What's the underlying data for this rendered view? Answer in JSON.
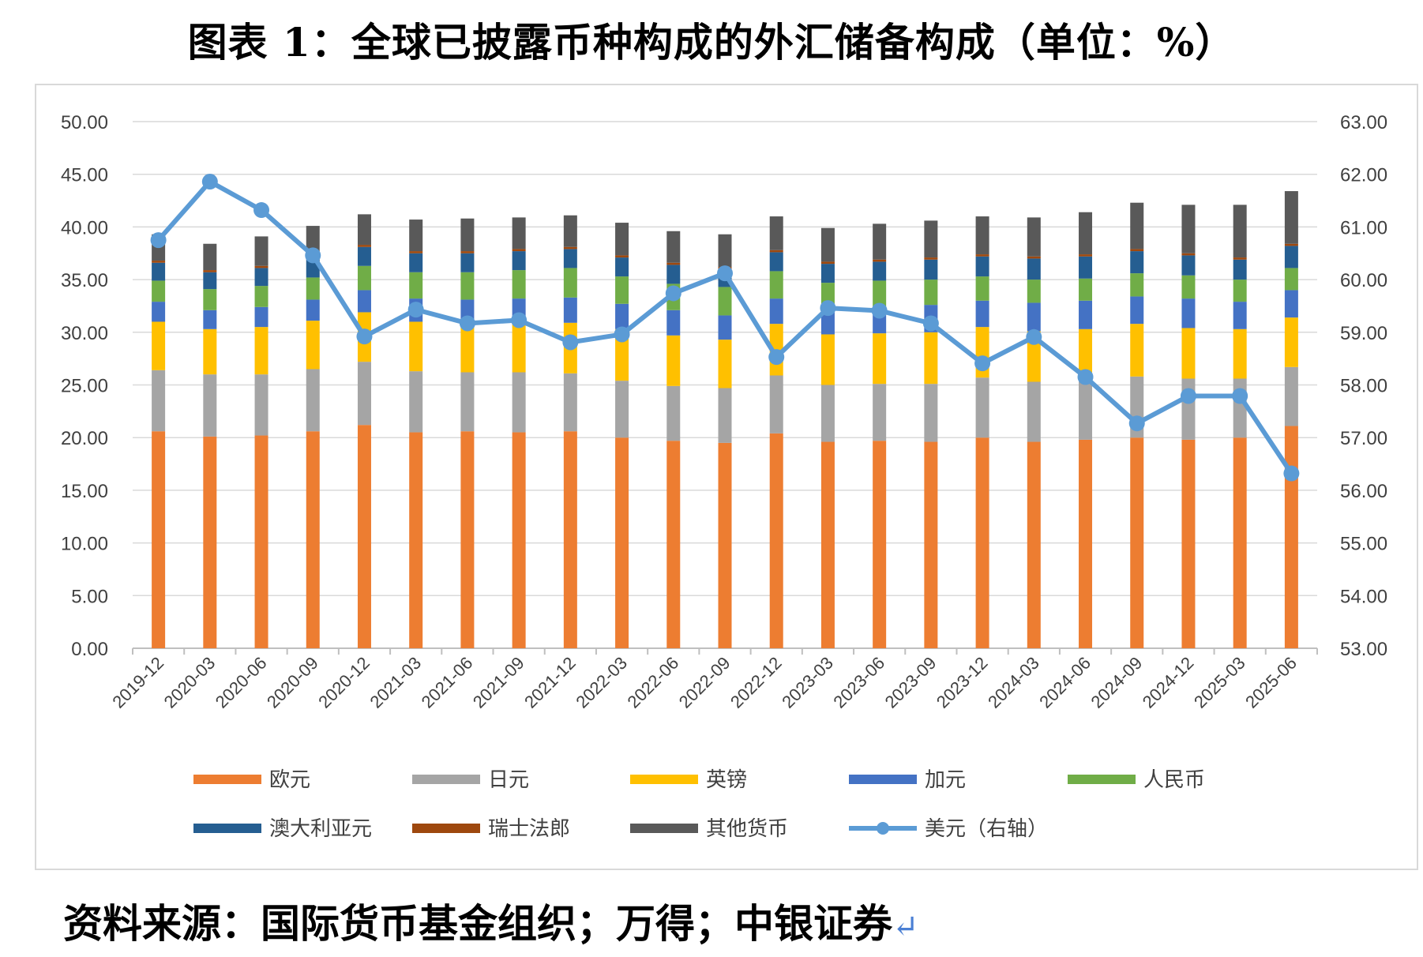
{
  "title": "图表 1：全球已披露币种构成的外汇储备构成（单位：%）",
  "source": "资料来源：国际货币基金组织；万得；中银证券",
  "chart_data": {
    "type": "bar",
    "stacked": true,
    "title": "图表 1：全球已披露币种构成的外汇储备构成（单位：%）",
    "y_left": {
      "ticks": [
        "0.00",
        "5.00",
        "10.00",
        "15.00",
        "20.00",
        "25.00",
        "30.00",
        "35.00",
        "40.00",
        "45.00",
        "50.00"
      ],
      "min": 0,
      "max": 50
    },
    "y_right": {
      "ticks": [
        "53.00",
        "54.00",
        "55.00",
        "56.00",
        "57.00",
        "58.00",
        "59.00",
        "60.00",
        "61.00",
        "62.00",
        "63.00"
      ],
      "min": 53,
      "max": 63
    },
    "grid": "horizontal",
    "legend_position": "bottom",
    "categories": [
      "2019-12",
      "2020-03",
      "2020-06",
      "2020-09",
      "2020-12",
      "2021-03",
      "2021-06",
      "2021-09",
      "2021-12",
      "2022-03",
      "2022-06",
      "2022-09",
      "2022-12",
      "2023-03",
      "2023-06",
      "2023-09",
      "2023-12",
      "2024-03",
      "2024-06",
      "2024-09",
      "2024-12",
      "2025-03",
      "2025-06"
    ],
    "series": [
      {
        "name": "欧元",
        "color": "#ed7d31",
        "values": [
          20.6,
          20.1,
          20.2,
          20.6,
          21.2,
          20.5,
          20.6,
          20.5,
          20.6,
          20.0,
          19.7,
          19.5,
          20.4,
          19.6,
          19.7,
          19.6,
          20.0,
          19.6,
          19.8,
          20.0,
          19.8,
          20.0,
          21.1
        ]
      },
      {
        "name": "日元",
        "color": "#a5a5a5",
        "values": [
          5.8,
          5.9,
          5.8,
          5.9,
          6.0,
          5.8,
          5.6,
          5.7,
          5.5,
          5.4,
          5.2,
          5.2,
          5.5,
          5.4,
          5.4,
          5.5,
          5.7,
          5.7,
          5.6,
          5.8,
          5.8,
          5.6,
          5.6
        ]
      },
      {
        "name": "英镑",
        "color": "#ffc000",
        "values": [
          4.6,
          4.3,
          4.5,
          4.6,
          4.7,
          4.7,
          4.7,
          4.8,
          4.8,
          4.9,
          4.8,
          4.6,
          4.9,
          4.8,
          4.8,
          4.9,
          4.8,
          4.8,
          4.9,
          5.0,
          4.8,
          4.7,
          4.7
        ]
      },
      {
        "name": "加元",
        "color": "#4472c4",
        "values": [
          1.9,
          1.8,
          1.9,
          2.0,
          2.1,
          2.2,
          2.2,
          2.2,
          2.4,
          2.4,
          2.4,
          2.3,
          2.4,
          2.5,
          2.5,
          2.6,
          2.5,
          2.7,
          2.7,
          2.6,
          2.8,
          2.6,
          2.6
        ]
      },
      {
        "name": "人民币",
        "color": "#70ad47",
        "values": [
          2.0,
          2.0,
          2.0,
          2.1,
          2.3,
          2.5,
          2.6,
          2.7,
          2.8,
          2.6,
          2.5,
          2.7,
          2.6,
          2.4,
          2.5,
          2.4,
          2.3,
          2.2,
          2.1,
          2.2,
          2.2,
          2.1,
          2.1
        ]
      },
      {
        "name": "澳大利亚元",
        "color": "#255e91",
        "values": [
          1.7,
          1.6,
          1.7,
          1.8,
          1.8,
          1.8,
          1.8,
          1.8,
          1.8,
          1.8,
          1.8,
          1.7,
          1.8,
          1.8,
          1.8,
          1.9,
          1.9,
          2.0,
          2.1,
          2.1,
          1.9,
          1.9,
          2.1
        ]
      },
      {
        "name": "瑞士法郎",
        "color": "#9e480e",
        "values": [
          0.2,
          0.2,
          0.2,
          0.2,
          0.2,
          0.2,
          0.2,
          0.2,
          0.2,
          0.2,
          0.2,
          0.2,
          0.2,
          0.2,
          0.2,
          0.2,
          0.2,
          0.2,
          0.2,
          0.2,
          0.2,
          0.2,
          0.2
        ]
      },
      {
        "name": "其他货币",
        "color": "#595959",
        "values": [
          2.5,
          2.5,
          2.8,
          2.9,
          2.9,
          3.0,
          3.1,
          3.0,
          3.0,
          3.1,
          3.0,
          3.1,
          3.2,
          3.2,
          3.4,
          3.5,
          3.6,
          3.7,
          4.0,
          4.4,
          4.6,
          5.0,
          5.0
        ]
      }
    ],
    "line_series": {
      "name": "美元（右轴）",
      "axis": "right",
      "color": "#5b9bd5",
      "values": [
        60.75,
        61.86,
        61.32,
        60.46,
        58.92,
        59.43,
        59.17,
        59.23,
        58.81,
        58.96,
        59.74,
        60.12,
        58.53,
        59.46,
        59.41,
        59.17,
        58.41,
        58.91,
        58.15,
        57.27,
        57.79,
        57.79,
        56.32
      ]
    }
  }
}
